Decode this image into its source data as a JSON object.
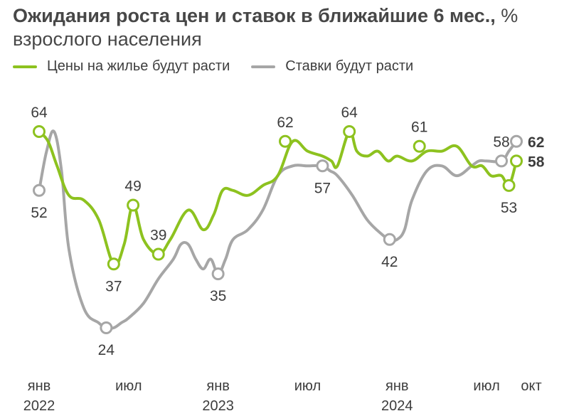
{
  "title": {
    "bold": "Ожидания роста цен и ставок в ближайшие 6 мес.,",
    "normal": " % взрослого населения"
  },
  "colors": {
    "green": "#8dc21f",
    "gray": "#a6a6a6",
    "final_green_label": "#8dc21f",
    "final_gray_label": "#2e3f55"
  },
  "chart_data": {
    "type": "line",
    "x_index_range": [
      0,
      33
    ],
    "ylim": [
      20,
      68
    ],
    "series": [
      {
        "name": "Цены на жилье будут расти",
        "color": "#8dc21f",
        "x": [
          0,
          0.6,
          1.2,
          2,
          3,
          4,
          5,
          5.7,
          6.3,
          7,
          8,
          8.8,
          10,
          11,
          11.7,
          12.3,
          13,
          14,
          15,
          16,
          17,
          18,
          19,
          19.6,
          20,
          20.8,
          21.3,
          22,
          22.7,
          23.4,
          24,
          25,
          26,
          27,
          28,
          29,
          29.7,
          30.3,
          31,
          31.5,
          32
        ],
        "y": [
          64,
          62,
          57,
          51,
          50,
          46,
          37,
          41,
          49,
          42,
          39,
          42,
          48,
          44,
          47,
          52,
          52,
          51,
          53,
          55,
          62,
          60,
          59,
          58,
          57,
          64,
          60,
          59,
          60,
          58,
          59,
          58,
          60,
          60,
          61,
          57,
          57,
          55,
          55,
          53,
          58
        ],
        "labeled_points": [
          {
            "x": 0,
            "value": 64,
            "label": "64",
            "pos": "above"
          },
          {
            "x": 5,
            "value": 37,
            "label": "37",
            "pos": "below"
          },
          {
            "x": 6.3,
            "value": 49,
            "label": "49",
            "pos": "above"
          },
          {
            "x": 8,
            "value": 39,
            "label": "39",
            "pos": "above"
          },
          {
            "x": 16.5,
            "value": 62,
            "label": "62",
            "pos": "above"
          },
          {
            "x": 20.8,
            "value": 64,
            "label": "64",
            "pos": "above"
          },
          {
            "x": 25.5,
            "value": 61,
            "label": "61",
            "pos": "above"
          },
          {
            "x": 31.5,
            "value": 53,
            "label": "53",
            "pos": "below"
          },
          {
            "x": 32,
            "value": 58,
            "label": "58",
            "pos": "right",
            "final": true
          }
        ]
      },
      {
        "name": "Ставки будут расти",
        "color": "#a6a6a6",
        "x": [
          0,
          0.5,
          1,
          1.5,
          2,
          3,
          4,
          4.5,
          5,
          5.5,
          6,
          7,
          8,
          9,
          9.5,
          10,
          10.5,
          11,
          11.5,
          12,
          12.5,
          13,
          14,
          15,
          16,
          17,
          18,
          19,
          19.5,
          20,
          21,
          22,
          23,
          23.5,
          24,
          24.5,
          25,
          26,
          27,
          28,
          29,
          29.5,
          30,
          31,
          31.5,
          32
        ],
        "y": [
          52,
          60,
          64,
          56,
          40,
          28,
          25,
          24,
          24,
          25,
          26,
          29,
          34,
          38,
          41,
          41,
          38,
          36,
          38,
          35,
          38,
          42,
          44,
          48,
          55,
          57,
          57,
          57,
          56,
          55,
          51,
          46,
          43,
          42,
          42,
          44,
          50,
          56,
          57,
          55,
          57,
          58,
          58,
          58,
          60,
          62
        ],
        "labeled_points": [
          {
            "x": 0,
            "value": 52,
            "label": "52",
            "pos": "below"
          },
          {
            "x": 4.5,
            "value": 24,
            "label": "24",
            "pos": "below"
          },
          {
            "x": 12,
            "value": 35,
            "label": "35",
            "pos": "below"
          },
          {
            "x": 19,
            "value": 57,
            "label": "57",
            "pos": "below"
          },
          {
            "x": 23.5,
            "value": 42,
            "label": "42",
            "pos": "below"
          },
          {
            "x": 31,
            "value": 58,
            "label": "58",
            "pos": "above"
          },
          {
            "x": 32,
            "value": 62,
            "label": "62",
            "pos": "right",
            "final": true
          }
        ]
      }
    ],
    "x_ticks": [
      {
        "x": 0,
        "month": "янв",
        "year": "2022"
      },
      {
        "x": 6,
        "month": "июл",
        "year": ""
      },
      {
        "x": 12,
        "month": "янв",
        "year": "2023"
      },
      {
        "x": 18,
        "month": "июл",
        "year": ""
      },
      {
        "x": 24,
        "month": "янв",
        "year": "2024"
      },
      {
        "x": 30,
        "month": "июл",
        "year": ""
      },
      {
        "x": 33,
        "month": "окт",
        "year": ""
      }
    ],
    "legend": "top-left",
    "grid": false
  }
}
